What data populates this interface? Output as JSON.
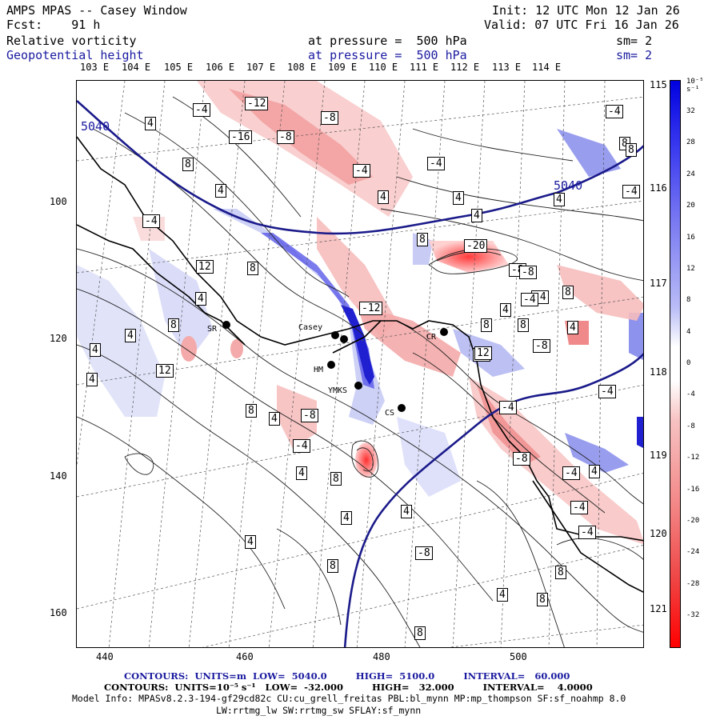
{
  "header": {
    "model_line": "AMPS MPAS -- Casey Window",
    "forecast_line": "Fcst:    91 h",
    "init_line": "Init: 12 UTC Mon 12 Jan 26",
    "valid_line": "Valid: 07 UTC Fri 16 Jan 26",
    "field1_name": "Relative vorticity",
    "field1_level": "at pressure =  500 hPa",
    "field1_sm": "sm= 2",
    "field2_name": "Geopotential height",
    "field2_level": "at pressure =  500 hPa",
    "field2_sm": "sm= 2"
  },
  "colors": {
    "geopotential_line": "#1a1aa0",
    "positive_vorticity": "#2a2ae0",
    "negative_vorticity": "#ff2a2a"
  },
  "top_longitude_labels": [
    "103 E",
    "104 E",
    "105 E",
    "106 E",
    "107 E",
    "108 E",
    "109 E",
    "110 E",
    "111 E",
    "112 E",
    "113 E",
    "114 E"
  ],
  "right_longitude_labels": [
    "115 E",
    "116 E",
    "117 E",
    "118 E",
    "119 E",
    "120 E",
    "121 E"
  ],
  "y_axis_ticks": [
    "100",
    "120",
    "140",
    "160"
  ],
  "x_axis_ticks": [
    "440",
    "460",
    "480",
    "500"
  ],
  "colorbar": {
    "unit_label": "10⁻⁵ s⁻¹",
    "tick_labels": [
      "32",
      "28",
      "24",
      "20",
      "16",
      "12",
      "8",
      "4",
      "0",
      "-4",
      "-8",
      "-12",
      "-16",
      "-20",
      "-24",
      "-28",
      "-32"
    ]
  },
  "height_contour_labels": [
    "5040",
    "5040"
  ],
  "vorticity_contour_labels": [
    "-4",
    "-12",
    "-8",
    "-16",
    "-8",
    "4",
    "8",
    "4",
    "-4",
    "-4",
    "4",
    "4",
    "8",
    "-4",
    "-20",
    "-8",
    "-8",
    "-4",
    "12",
    "8",
    "-12",
    "4",
    "8",
    "4",
    "12",
    "4",
    "8",
    "8",
    "4",
    "12",
    "-8",
    "8",
    "4",
    "-4",
    "4",
    "8",
    "-8",
    "-4",
    "4",
    "4",
    "4",
    "4",
    "8",
    "-8",
    "-4",
    "-4",
    "8",
    "8",
    "4",
    "4",
    "8",
    "4",
    "-4",
    "-4",
    "8",
    "-4",
    "4",
    "-4",
    "8",
    "-8",
    "4",
    "4",
    "-4",
    "8",
    "12",
    "4"
  ],
  "stations": [
    "Casey",
    "CR",
    "SR",
    "HM",
    "YMKS",
    "CS"
  ],
  "footer": {
    "contours_height": "CONTOURS:  UNITS=m  LOW=  5040.0         HIGH=  5100.0         INTERVAL=   60.000",
    "contours_vort": "CONTOURS:  UNITS=10⁻⁵ s⁻¹   LOW=  -32.000         HIGH=   32.000         INTERVAL=    4.0000",
    "model_info": "Model Info: MPASv8.2.3-194-gf29cd82c CU:cu_grell_freitas PBL:bl_mynn MP:mp_thompson SF:sf_noahmp 8.0",
    "model_info2": "LW:rrtmg_lw SW:rrtmg_sw SFLAY:sf_mynn"
  }
}
